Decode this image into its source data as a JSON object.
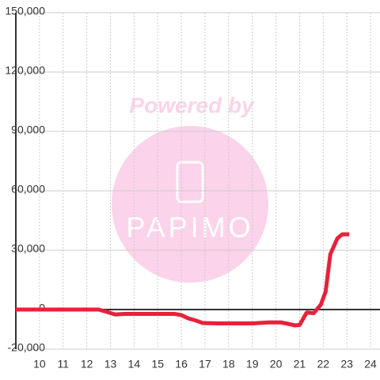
{
  "chart_data": {
    "type": "line",
    "watermark": [
      "Powered by",
      "PAPIMO"
    ],
    "x": [
      9,
      12.5,
      12.8,
      13.2,
      13.6,
      14,
      15,
      15.7,
      16,
      16.3,
      16.6,
      16.9,
      17.5,
      18,
      19,
      19.7,
      20.2,
      20.5,
      20.8,
      21,
      21.3,
      21.6,
      21.9,
      22.1,
      22.3,
      22.6,
      22.8,
      23.1
    ],
    "series": [
      {
        "color": "#e8213a",
        "values": [
          0,
          0,
          -1000,
          -2500,
          -2200,
          -2200,
          -2200,
          -2200,
          -2800,
          -4500,
          -5500,
          -6800,
          -7000,
          -7000,
          -7000,
          -6500,
          -6500,
          -7200,
          -8000,
          -7800,
          -1500,
          -1800,
          2500,
          9000,
          28000,
          36000,
          38000,
          38000
        ]
      }
    ],
    "xlim": [
      9,
      24.4
    ],
    "xticks": [
      10,
      11,
      12,
      13,
      14,
      15,
      16,
      17,
      18,
      19,
      20,
      21,
      22,
      23,
      24
    ],
    "ylim": [
      -20000,
      150000
    ],
    "yticks": [
      {
        "value": -20000,
        "label": "-20,000"
      },
      0,
      {
        "value": 30000,
        "label": "30,000"
      },
      {
        "value": 60000,
        "label": "60,000"
      },
      {
        "value": 90000,
        "label": "90,000"
      },
      {
        "value": 120000,
        "label": "120,000"
      },
      {
        "value": 150000,
        "label": "150,000"
      }
    ],
    "grid": true
  }
}
